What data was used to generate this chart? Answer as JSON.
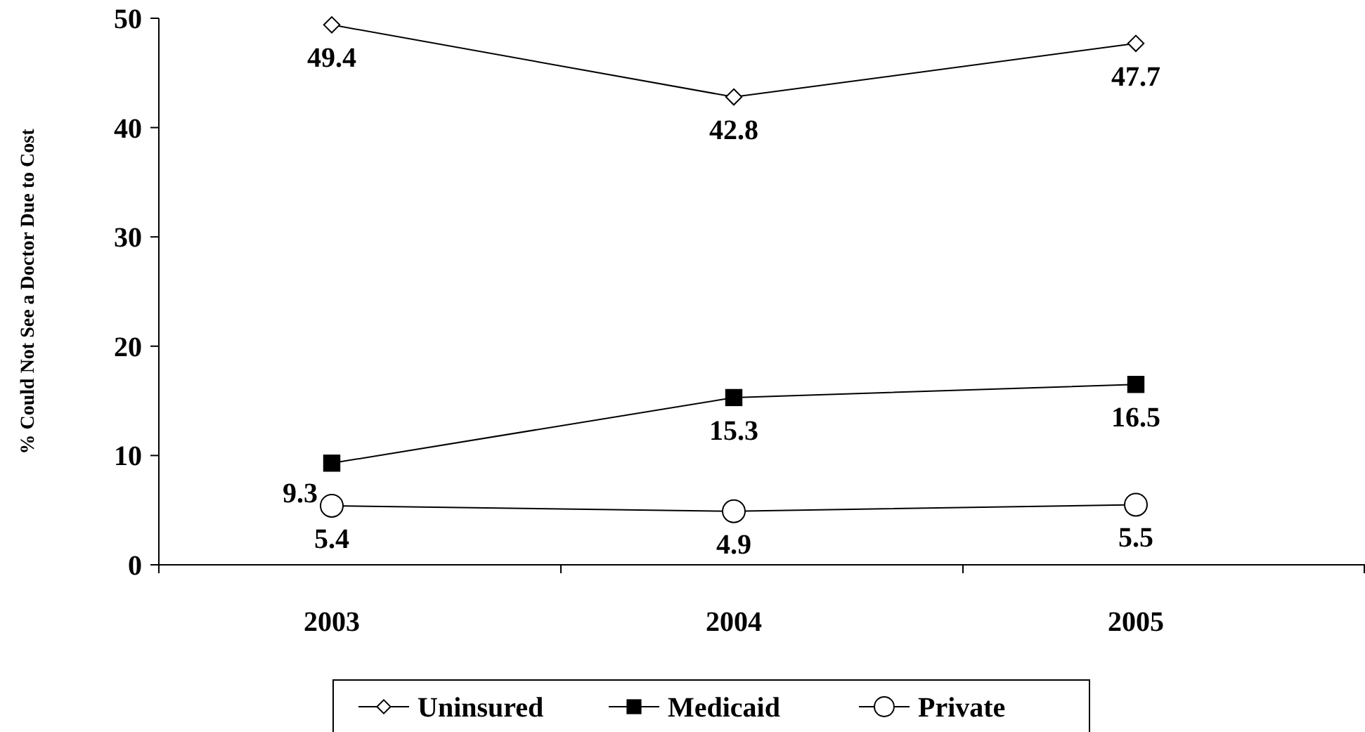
{
  "chart_data": {
    "type": "line",
    "ylabel": "% Could Not See a Doctor Due to Cost",
    "categories": [
      "2003",
      "2004",
      "2005"
    ],
    "series": [
      {
        "name": "Uninsured",
        "color": "#000000",
        "marker": "diamond",
        "values": [
          49.4,
          42.8,
          47.7
        ]
      },
      {
        "name": "Medicaid",
        "color": "#000000",
        "marker": "square",
        "values": [
          9.3,
          15.3,
          16.5
        ]
      },
      {
        "name": "Private",
        "color": "#000000",
        "marker": "circle",
        "values": [
          5.4,
          4.9,
          5.5
        ]
      }
    ],
    "ylim": [
      0,
      50
    ],
    "yticks": [
      0,
      10,
      20,
      30,
      40,
      50
    ],
    "data_labels": true,
    "legend": "bottom",
    "grid": false,
    "line_style": "solid"
  }
}
